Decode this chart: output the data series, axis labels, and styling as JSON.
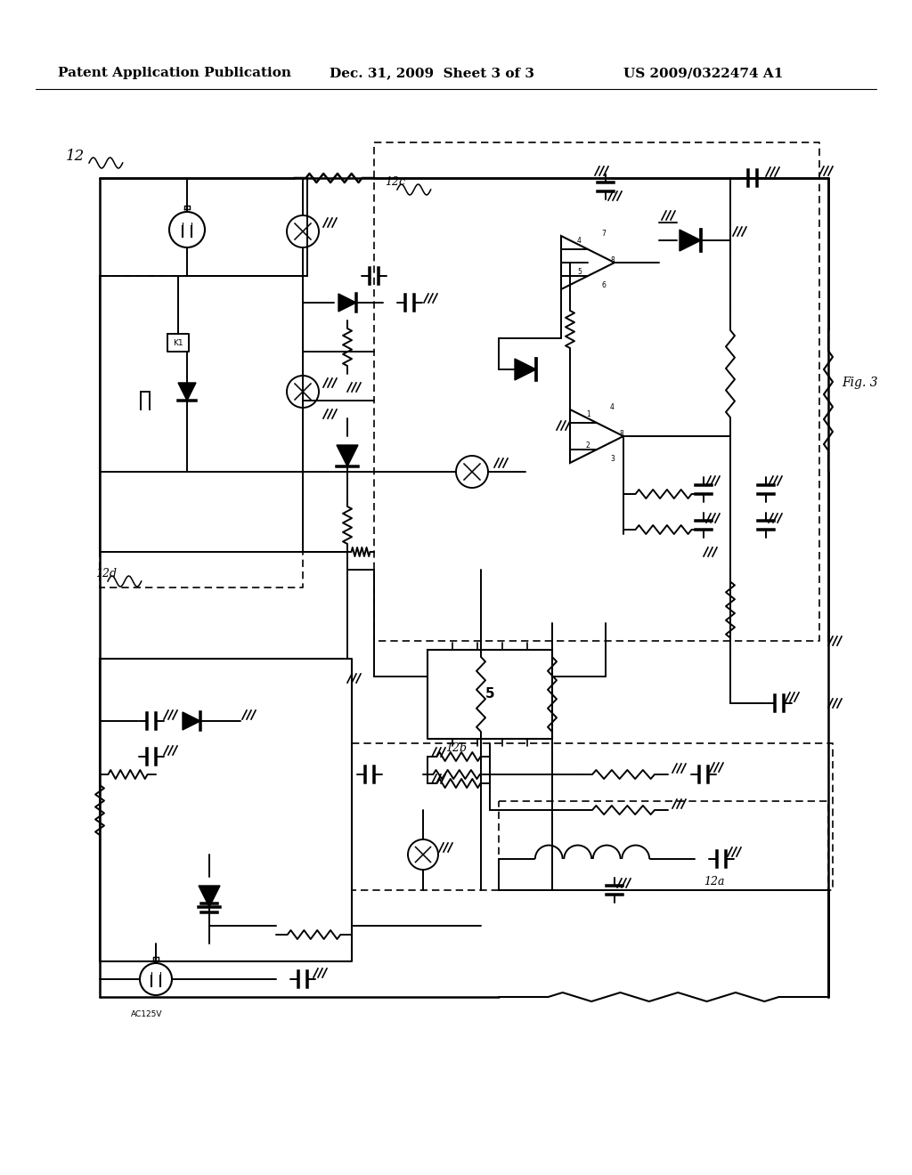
{
  "title_left": "Patent Application Publication",
  "title_center": "Dec. 31, 2009  Sheet 3 of 3",
  "title_right": "US 2009/0322474 A1",
  "fig_label": "Fig. 3",
  "background_color": "#ffffff",
  "line_color": "#000000",
  "title_fontsize": 11,
  "label_fontsize": 9
}
